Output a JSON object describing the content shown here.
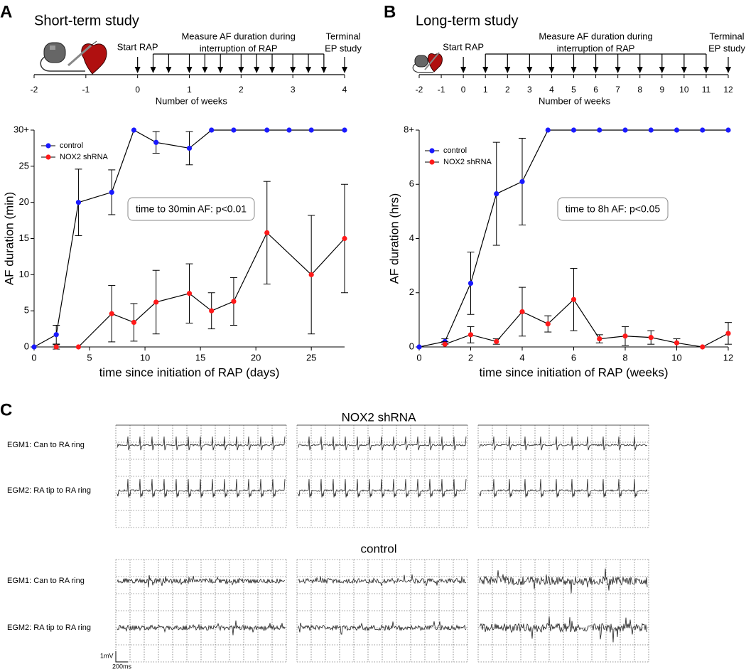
{
  "panels": [
    "A",
    "B",
    "C"
  ],
  "timelines": [
    {
      "title": "Short-term study",
      "xlim": [
        -2,
        4
      ],
      "ticks": [
        -2,
        -1,
        0,
        1,
        2,
        3,
        4
      ],
      "axis_label": "Number of weeks",
      "start_label": "Start RAP",
      "measure_label": [
        "Measure AF duration during",
        "interruption of RAP"
      ],
      "terminal_label": [
        "Terminal",
        "EP study"
      ],
      "start_arrow": 0,
      "arrows": [
        0.3,
        0.6,
        1,
        1.3,
        1.6,
        2,
        2.3,
        2.6,
        3,
        3.3,
        3.6
      ],
      "terminal_arrow": 4
    },
    {
      "title": "Long-term study",
      "xlim": [
        -2,
        12
      ],
      "ticks": [
        -2,
        -1,
        0,
        1,
        2,
        3,
        4,
        5,
        6,
        7,
        8,
        9,
        10,
        11,
        12
      ],
      "axis_label": "Number of weeks",
      "start_label": "Start RAP",
      "measure_label": [
        "Measure AF duration during",
        "interruption of RAP"
      ],
      "terminal_label": [
        "Terminal",
        "EP study"
      ],
      "start_arrow": 0,
      "arrows": [
        1,
        2,
        3,
        4,
        5,
        6,
        7,
        8,
        9,
        10,
        11
      ],
      "terminal_arrow": 12
    }
  ],
  "chart_data": [
    {
      "type": "line",
      "x_label": "time since initiation of RAP (days)",
      "y_label": "AF duration (min)",
      "xlim": [
        0,
        28
      ],
      "xticks": [
        0,
        5,
        10,
        15,
        20,
        25
      ],
      "ylim": [
        0,
        30
      ],
      "yticks": [
        0,
        5,
        10,
        15,
        20,
        25,
        {
          "value": 30,
          "label": "30+"
        }
      ],
      "annotation": "time to 30min AF: p<0.01",
      "legend": "upper left",
      "series": [
        {
          "name": "control",
          "color": "#1a1aff",
          "x": [
            0,
            2,
            4,
            7,
            9,
            11,
            14,
            16,
            18,
            21,
            23,
            25,
            28
          ],
          "values": [
            0,
            1.7,
            20,
            21.4,
            30,
            28.3,
            27.5,
            30,
            30,
            30,
            30,
            30,
            30
          ],
          "errors": [
            null,
            1.3,
            4.6,
            3.1,
            null,
            1.5,
            2.3,
            null,
            null,
            null,
            null,
            null,
            null
          ]
        },
        {
          "name": "NOX2 shRNA",
          "color": "#ff1a1a",
          "x": [
            2,
            4,
            7,
            9,
            11,
            14,
            16,
            18,
            21,
            25,
            28
          ],
          "values": [
            0,
            0,
            4.6,
            3.4,
            6.2,
            7.4,
            5,
            6.3,
            15.8,
            10,
            15
          ],
          "errors": [
            0.3,
            null,
            3.9,
            2.6,
            4.4,
            4.1,
            2.5,
            3.3,
            7.1,
            8.2,
            7.5
          ]
        }
      ]
    },
    {
      "type": "line",
      "x_label": "time since initiation of RAP (weeks)",
      "y_label": "AF duration (hrs)",
      "xlim": [
        0,
        12
      ],
      "xticks": [
        0,
        2,
        4,
        6,
        8,
        10,
        12
      ],
      "ylim": [
        0,
        8
      ],
      "yticks": [
        0,
        2,
        4,
        6,
        {
          "value": 8,
          "label": "8+"
        }
      ],
      "annotation": "time to 8h AF: p<0.05",
      "legend": "upper left",
      "series": [
        {
          "name": "control",
          "color": "#1a1aff",
          "x": [
            0,
            1,
            2,
            3,
            4,
            5,
            6,
            7,
            8,
            9,
            10,
            11,
            12
          ],
          "values": [
            0,
            0.2,
            2.35,
            5.65,
            6.1,
            8,
            8,
            8,
            8,
            8,
            8,
            8,
            8
          ],
          "errors": [
            null,
            0.1,
            1.15,
            1.9,
            1.6,
            null,
            null,
            null,
            null,
            null,
            null,
            null,
            null
          ]
        },
        {
          "name": "NOX2 shRNA",
          "color": "#ff1a1a",
          "x": [
            1,
            2,
            3,
            4,
            5,
            6,
            7,
            8,
            9,
            10,
            11,
            12
          ],
          "values": [
            0.1,
            0.45,
            0.2,
            1.3,
            0.85,
            1.75,
            0.3,
            0.4,
            0.35,
            0.15,
            0,
            0.5
          ],
          "errors": [
            0.1,
            0.3,
            0.1,
            0.9,
            0.3,
            1.15,
            0.15,
            0.35,
            0.25,
            0.15,
            null,
            0.4
          ]
        }
      ]
    }
  ],
  "egm": {
    "groups": [
      {
        "title": "NOX2 shRNA",
        "rows": [
          "EGM1: Can to RA ring",
          "EGM2: RA tip to RA ring"
        ]
      },
      {
        "title": "control",
        "rows": [
          "EGM1: Can to RA ring",
          "EGM2: RA tip to RA ring"
        ]
      }
    ],
    "scale": {
      "voltage": "1mV",
      "time": "200ms"
    }
  }
}
